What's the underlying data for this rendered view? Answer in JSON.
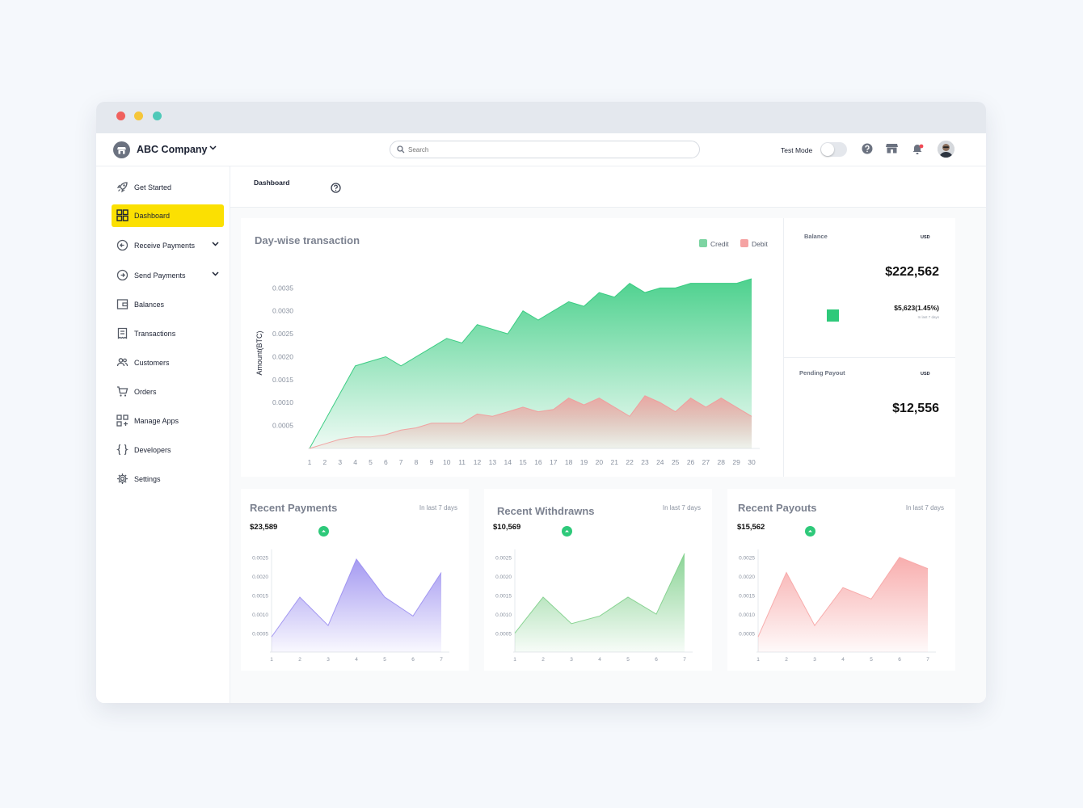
{
  "app": {
    "company": "ABC Company"
  },
  "search": {
    "placeholder": "Search"
  },
  "topbar": {
    "test_mode_label": "Test Mode"
  },
  "sidebar": {
    "items": [
      {
        "label": "Get Started",
        "icon": "rocket-icon"
      },
      {
        "label": "Dashboard",
        "icon": "grid-icon",
        "active": true
      },
      {
        "label": "Receive Payments",
        "icon": "receive-icon",
        "expandable": true
      },
      {
        "label": "Send Payments",
        "icon": "send-icon",
        "expandable": true
      },
      {
        "label": "Balances",
        "icon": "wallet-icon"
      },
      {
        "label": "Transactions",
        "icon": "receipt-icon"
      },
      {
        "label": "Customers",
        "icon": "users-icon"
      },
      {
        "label": "Orders",
        "icon": "cart-icon"
      },
      {
        "label": "Manage Apps",
        "icon": "apps-icon"
      },
      {
        "label": "Developers",
        "icon": "braces-icon"
      },
      {
        "label": "Settings",
        "icon": "gear-icon"
      }
    ]
  },
  "breadcrumb": {
    "label": "Dashboard"
  },
  "colors": {
    "accent": "#fbe002",
    "credit": "#2ec97a",
    "debit": "#f29a9a",
    "up": "#2ec97a"
  },
  "balance": {
    "label": "Balance",
    "currency": "USD",
    "amount": "$222,562",
    "change": "$5,623(1.45%)",
    "change_note": "In last 7 days"
  },
  "pending": {
    "label": "Pending Payout",
    "currency": "USD",
    "amount": "$12,556"
  },
  "chart_data": [
    {
      "type": "area",
      "title": "Day-wise transaction",
      "xlabel": "",
      "ylabel": "Amount(BTC)",
      "x": [
        "1",
        "2",
        "3",
        "4",
        "5",
        "6",
        "7",
        "8",
        "9",
        "10",
        "11",
        "12",
        "13",
        "14",
        "15",
        "16",
        "17",
        "18",
        "19",
        "20",
        "21",
        "22",
        "23",
        "24",
        "25",
        "26",
        "27",
        "28",
        "29",
        "30"
      ],
      "ylim": [
        0,
        0.0037
      ],
      "yticks": [
        "0.0005",
        "0.0010",
        "0.0015",
        "0.0020",
        "0.0025",
        "0.0030",
        "0.0035"
      ],
      "legend_position": "top-right",
      "series": [
        {
          "name": "Credit",
          "color": "#2ec97a",
          "values": [
            0,
            0.0006,
            0.0012,
            0.0018,
            0.0019,
            0.002,
            0.0018,
            0.002,
            0.0022,
            0.0024,
            0.0023,
            0.0027,
            0.0026,
            0.0025,
            0.003,
            0.0028,
            0.003,
            0.0032,
            0.0031,
            0.0034,
            0.0033,
            0.0036,
            0.0034,
            0.0035,
            0.0035,
            0.0036,
            0.0036,
            0.0036,
            0.0036,
            0.0037
          ]
        },
        {
          "name": "Debit",
          "color": "#f29a9a",
          "values": [
            0,
            0.0001,
            0.0002,
            0.00025,
            0.00025,
            0.0003,
            0.0004,
            0.00045,
            0.00055,
            0.00055,
            0.00055,
            0.00075,
            0.0007,
            0.0008,
            0.0009,
            0.0008,
            0.00085,
            0.0011,
            0.00095,
            0.0011,
            0.0009,
            0.0007,
            0.00115,
            0.001,
            0.0008,
            0.0011,
            0.0009,
            0.0011,
            0.0009,
            0.0007
          ]
        }
      ]
    },
    {
      "type": "area",
      "title": "Recent Payments",
      "subtitle": "In last 7 days",
      "total": "$23,589",
      "color": "#9b8ff0",
      "x": [
        "1",
        "2",
        "3",
        "4",
        "5",
        "6",
        "7"
      ],
      "ylim": [
        0,
        0.0026
      ],
      "yticks": [
        "0.0005",
        "0.0010",
        "0.0015",
        "0.0020",
        "0.0025"
      ],
      "values": [
        0.0004,
        0.00145,
        0.0007,
        0.00245,
        0.00145,
        0.00095,
        0.0021
      ]
    },
    {
      "type": "area",
      "title": "Recent Withdrawns",
      "subtitle": "In last 7 days",
      "total": "$10,569",
      "color": "#7ecf8a",
      "x": [
        "1",
        "2",
        "3",
        "4",
        "5",
        "6",
        "7"
      ],
      "ylim": [
        0,
        0.0026
      ],
      "yticks": [
        "0.0005",
        "0.0010",
        "0.0015",
        "0.0020",
        "0.0025"
      ],
      "values": [
        0.0005,
        0.00145,
        0.00075,
        0.00095,
        0.00145,
        0.001,
        0.0026
      ]
    },
    {
      "type": "area",
      "title": "Recent Payouts",
      "subtitle": "In last 7 days",
      "total": "$15,562",
      "color": "#f7a5a5",
      "x": [
        "1",
        "2",
        "3",
        "4",
        "5",
        "6",
        "7"
      ],
      "ylim": [
        0,
        0.0026
      ],
      "yticks": [
        "0.0005",
        "0.0010",
        "0.0015",
        "0.0020",
        "0.0025"
      ],
      "values": [
        0.0004,
        0.0021,
        0.0007,
        0.0017,
        0.0014,
        0.0025,
        0.0022
      ]
    }
  ]
}
